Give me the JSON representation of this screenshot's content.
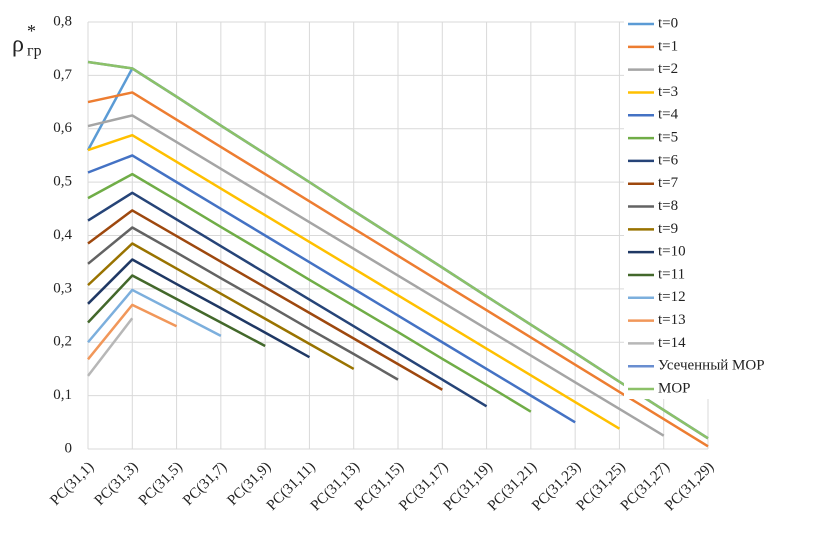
{
  "chart_data": {
    "type": "line",
    "y_label": "ρ",
    "y_label_sup": "*",
    "y_label_sub": "гр",
    "categories": [
      "PC(31,1)",
      "PC(31,3)",
      "PC(31,5)",
      "PC(31,7)",
      "PC(31,9)",
      "PC(31,11)",
      "PC(31,13)",
      "PC(31,15)",
      "PC(31,17)",
      "PC(31,19)",
      "PC(31,21)",
      "PC(31,23)",
      "PC(31,25)",
      "PC(31,27)",
      "PC(31,29)"
    ],
    "ylim": [
      0,
      0.8
    ],
    "yticks": [
      {
        "value": 0,
        "label": "0"
      },
      {
        "value": 0.1,
        "label": "0,1"
      },
      {
        "value": 0.2,
        "label": "0,2"
      },
      {
        "value": 0.3,
        "label": "0,3"
      },
      {
        "value": 0.4,
        "label": "0,4"
      },
      {
        "value": 0.5,
        "label": "0,5"
      },
      {
        "value": 0.6,
        "label": "0,6"
      },
      {
        "value": 0.7,
        "label": "0,7"
      },
      {
        "value": 0.8,
        "label": "0,8"
      }
    ],
    "grid": true,
    "series": [
      {
        "name": "t=0",
        "color": "#5b9bd5",
        "values": [
          0.56,
          0.713,
          0.66,
          0.606,
          0.553,
          0.5,
          0.446,
          0.393,
          0.34,
          0.286,
          0.233,
          0.18,
          0.126,
          0.073,
          0.02
        ]
      },
      {
        "name": "t=1",
        "color": "#ed7d31",
        "values": [
          0.65,
          0.668,
          0.617,
          0.566,
          0.515,
          0.464,
          0.413,
          0.362,
          0.311,
          0.26,
          0.209,
          0.158,
          0.107,
          0.056,
          0.005
        ]
      },
      {
        "name": "t=2",
        "color": "#a5a5a5",
        "values": [
          0.605,
          0.625,
          0.575,
          0.525,
          0.475,
          0.425,
          0.375,
          0.325,
          0.275,
          0.225,
          0.175,
          0.125,
          0.075,
          0.025,
          null
        ]
      },
      {
        "name": "t=3",
        "color": "#ffc000",
        "values": [
          0.56,
          0.588,
          0.538,
          0.488,
          0.438,
          0.388,
          0.338,
          0.288,
          0.238,
          0.188,
          0.138,
          0.088,
          0.038,
          null,
          null
        ]
      },
      {
        "name": "t=4",
        "color": "#4472c4",
        "values": [
          0.518,
          0.55,
          0.5,
          0.45,
          0.4,
          0.35,
          0.3,
          0.25,
          0.2,
          0.15,
          0.1,
          0.05,
          null,
          null,
          null
        ]
      },
      {
        "name": "t=5",
        "color": "#70ad47",
        "values": [
          0.47,
          0.515,
          0.466,
          0.416,
          0.367,
          0.317,
          0.268,
          0.219,
          0.169,
          0.12,
          0.07,
          null,
          null,
          null,
          null
        ]
      },
      {
        "name": "t=6",
        "color": "#264478",
        "values": [
          0.428,
          0.48,
          0.43,
          0.38,
          0.33,
          0.28,
          0.23,
          0.18,
          0.13,
          0.08,
          null,
          null,
          null,
          null,
          null
        ]
      },
      {
        "name": "t=7",
        "color": "#9e480e",
        "values": [
          0.385,
          0.447,
          0.399,
          0.351,
          0.303,
          0.255,
          0.207,
          0.159,
          0.111,
          null,
          null,
          null,
          null,
          null,
          null
        ]
      },
      {
        "name": "t=8",
        "color": "#636363",
        "values": [
          0.347,
          0.415,
          0.368,
          0.32,
          0.273,
          0.225,
          0.178,
          0.13,
          null,
          null,
          null,
          null,
          null,
          null,
          null
        ]
      },
      {
        "name": "t=9",
        "color": "#997300",
        "values": [
          0.307,
          0.385,
          0.338,
          0.291,
          0.244,
          0.197,
          0.15,
          null,
          null,
          null,
          null,
          null,
          null,
          null,
          null
        ]
      },
      {
        "name": "t=10",
        "color": "#1f3864",
        "values": [
          0.272,
          0.355,
          0.309,
          0.264,
          0.218,
          0.172,
          null,
          null,
          null,
          null,
          null,
          null,
          null,
          null,
          null
        ]
      },
      {
        "name": "t=11",
        "color": "#43682b",
        "values": [
          0.237,
          0.325,
          0.281,
          0.237,
          0.193,
          null,
          null,
          null,
          null,
          null,
          null,
          null,
          null,
          null,
          null
        ]
      },
      {
        "name": "t=12",
        "color": "#7cafdd",
        "values": [
          0.2,
          0.298,
          0.255,
          0.212,
          null,
          null,
          null,
          null,
          null,
          null,
          null,
          null,
          null,
          null,
          null
        ]
      },
      {
        "name": "t=13",
        "color": "#f1975a",
        "values": [
          0.168,
          0.27,
          0.23,
          null,
          null,
          null,
          null,
          null,
          null,
          null,
          null,
          null,
          null,
          null,
          null
        ]
      },
      {
        "name": "t=14",
        "color": "#b7b7b7",
        "values": [
          0.137,
          0.245,
          null,
          null,
          null,
          null,
          null,
          null,
          null,
          null,
          null,
          null,
          null,
          null,
          null
        ]
      },
      {
        "name": "Усеченный МОР",
        "color": "#698ed0",
        "values": [
          0.725,
          0.713,
          0.66,
          0.606,
          0.553,
          0.5,
          0.446,
          0.393,
          0.34,
          0.286,
          0.233,
          0.18,
          0.126,
          0.073,
          0.02
        ]
      },
      {
        "name": "МОР",
        "color": "#8cc168",
        "values": [
          0.725,
          0.713,
          0.66,
          0.606,
          0.553,
          0.5,
          0.446,
          0.393,
          0.34,
          0.286,
          0.233,
          0.18,
          0.126,
          0.073,
          0.02
        ]
      }
    ]
  }
}
